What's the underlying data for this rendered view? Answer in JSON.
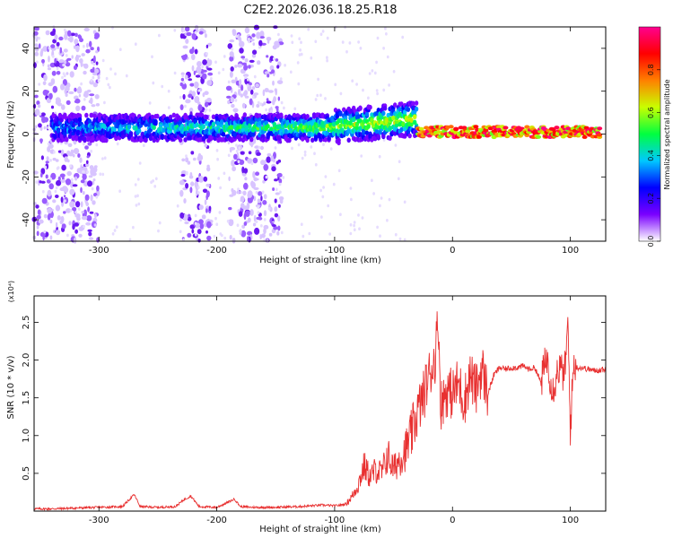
{
  "title": "C2E2.2026.036.18.25.R18",
  "chart_data": [
    {
      "type": "heatmap",
      "name": "spectrogram",
      "xlabel": "Height of straight line (km)",
      "ylabel": "Frequency (Hz)",
      "xlim": [
        -355,
        130
      ],
      "ylim": [
        -50,
        50
      ],
      "xticks": [
        -300,
        -200,
        -100,
        0,
        100
      ],
      "yticks": [
        -40,
        -20,
        0,
        20,
        40
      ],
      "colorbar": {
        "label": "Normalized spectral amplitude",
        "range": [
          0,
          1
        ],
        "ticks": [
          "0.0",
          "0.2",
          "0.4",
          "0.6",
          "0.8"
        ],
        "tick_values": [
          0.0,
          0.2,
          0.4,
          0.6,
          0.8
        ],
        "colors": [
          "#ffffff",
          "#7a00ff",
          "#0000ff",
          "#00c8ff",
          "#00ff40",
          "#c8ff00",
          "#ff8000",
          "#ff0000",
          "#ff0090"
        ]
      },
      "bands": [
        {
          "x_start": -340,
          "x_end": 125,
          "center_hz": 3,
          "half_width_hz": 6,
          "note": "main signal band"
        }
      ],
      "noise_columns_km": [
        [
          -355,
          -300
        ],
        [
          -230,
          -205
        ],
        [
          -190,
          -145
        ]
      ]
    },
    {
      "type": "line",
      "name": "snr",
      "xlabel": "Height of straight line (km)",
      "ylabel": "SNR (10 * v/v)",
      "y_multiplier": "(x10⁴)",
      "xlim": [
        -355,
        130
      ],
      "ylim": [
        0,
        2.85
      ],
      "xticks": [
        -300,
        -200,
        -100,
        0,
        100
      ],
      "yticks": [
        0.5,
        1.0,
        1.5,
        2.0,
        2.5
      ],
      "ytick_labels": [
        "0.5",
        "1.0",
        "1.5",
        "2.0",
        "2.5"
      ],
      "color": "#e83030",
      "series": [
        {
          "x": [
            -355,
            -340,
            -320,
            -300,
            -280,
            -270,
            -265,
            -250,
            -235,
            -228,
            -222,
            -215,
            -200,
            -190,
            -185,
            -180,
            -170,
            -150,
            -130,
            -110,
            -100,
            -95,
            -90,
            -85,
            -80,
            -75,
            -70,
            -65,
            -60,
            -55,
            -50,
            -45,
            -40,
            -35,
            -30,
            -25,
            -20,
            -15,
            -12,
            -10,
            -5,
            0,
            5,
            10,
            15,
            20,
            25,
            30,
            35,
            40,
            45,
            50,
            55,
            60,
            65,
            70,
            75,
            80,
            85,
            90,
            95,
            98,
            100,
            103,
            105,
            110,
            115,
            120,
            125,
            130
          ],
          "y": [
            0.03,
            0.03,
            0.04,
            0.05,
            0.06,
            0.22,
            0.06,
            0.05,
            0.06,
            0.15,
            0.2,
            0.06,
            0.05,
            0.12,
            0.16,
            0.06,
            0.05,
            0.05,
            0.06,
            0.08,
            0.07,
            0.08,
            0.1,
            0.2,
            0.35,
            0.6,
            0.45,
            0.55,
            0.5,
            0.75,
            0.55,
            0.7,
            0.8,
            1.0,
            1.3,
            1.5,
            1.8,
            2.0,
            2.55,
            1.4,
            1.6,
            1.55,
            1.7,
            1.45,
            1.8,
            1.6,
            1.9,
            1.55,
            1.8,
            1.9,
            1.88,
            1.9,
            1.9,
            1.92,
            1.88,
            1.9,
            1.7,
            2.05,
            1.6,
            1.9,
            1.8,
            2.45,
            1.1,
            2.0,
            1.9,
            1.9,
            1.88,
            1.86,
            1.87,
            1.88
          ]
        }
      ]
    }
  ]
}
